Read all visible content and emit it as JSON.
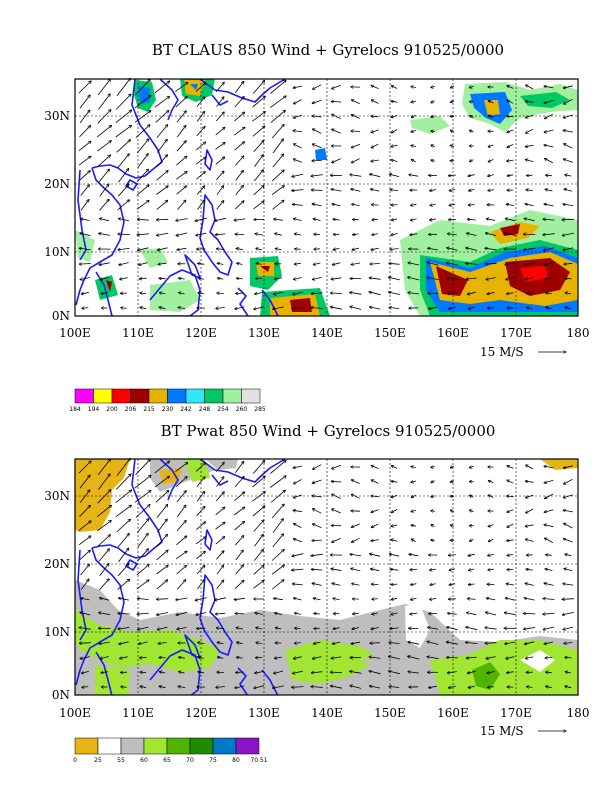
{
  "panels": [
    {
      "title": "BT CLAUS 850 Wind + Gyrelocs 910525/0000",
      "legend": {
        "labels": [
          "184",
          "194",
          "200",
          "206",
          "215",
          "230",
          "242",
          "248",
          "254",
          "260",
          "285"
        ],
        "colors": [
          "#ff00ff",
          "#ffff00",
          "#ff0000",
          "#a00000",
          "#e6b400",
          "#0078ff",
          "#32e6ff",
          "#00c864",
          "#a0f0a0",
          "#e1e1e1"
        ]
      }
    },
    {
      "title": "BT Pwat 850 Wind + Gyrelocs 910525/0000",
      "legend": {
        "labels": [
          "0",
          "25",
          "55",
          "60",
          "65",
          "70",
          "75",
          "80",
          "70.51"
        ],
        "colors": [
          "#e6b414",
          "#ffffff",
          "#bebebe",
          "#a0e632",
          "#50b400",
          "#1e8c00",
          "#0078c8",
          "#8c14c8"
        ]
      }
    }
  ],
  "axes": {
    "x_ticks": [
      "100E",
      "110E",
      "120E",
      "130E",
      "140E",
      "150E",
      "160E",
      "170E",
      "180"
    ],
    "y_ticks": [
      "0N",
      "10N",
      "20N",
      "30N"
    ],
    "lon_range": [
      100,
      180
    ],
    "lat_range": [
      0,
      35
    ]
  },
  "reference_vector": "15 M/S"
}
